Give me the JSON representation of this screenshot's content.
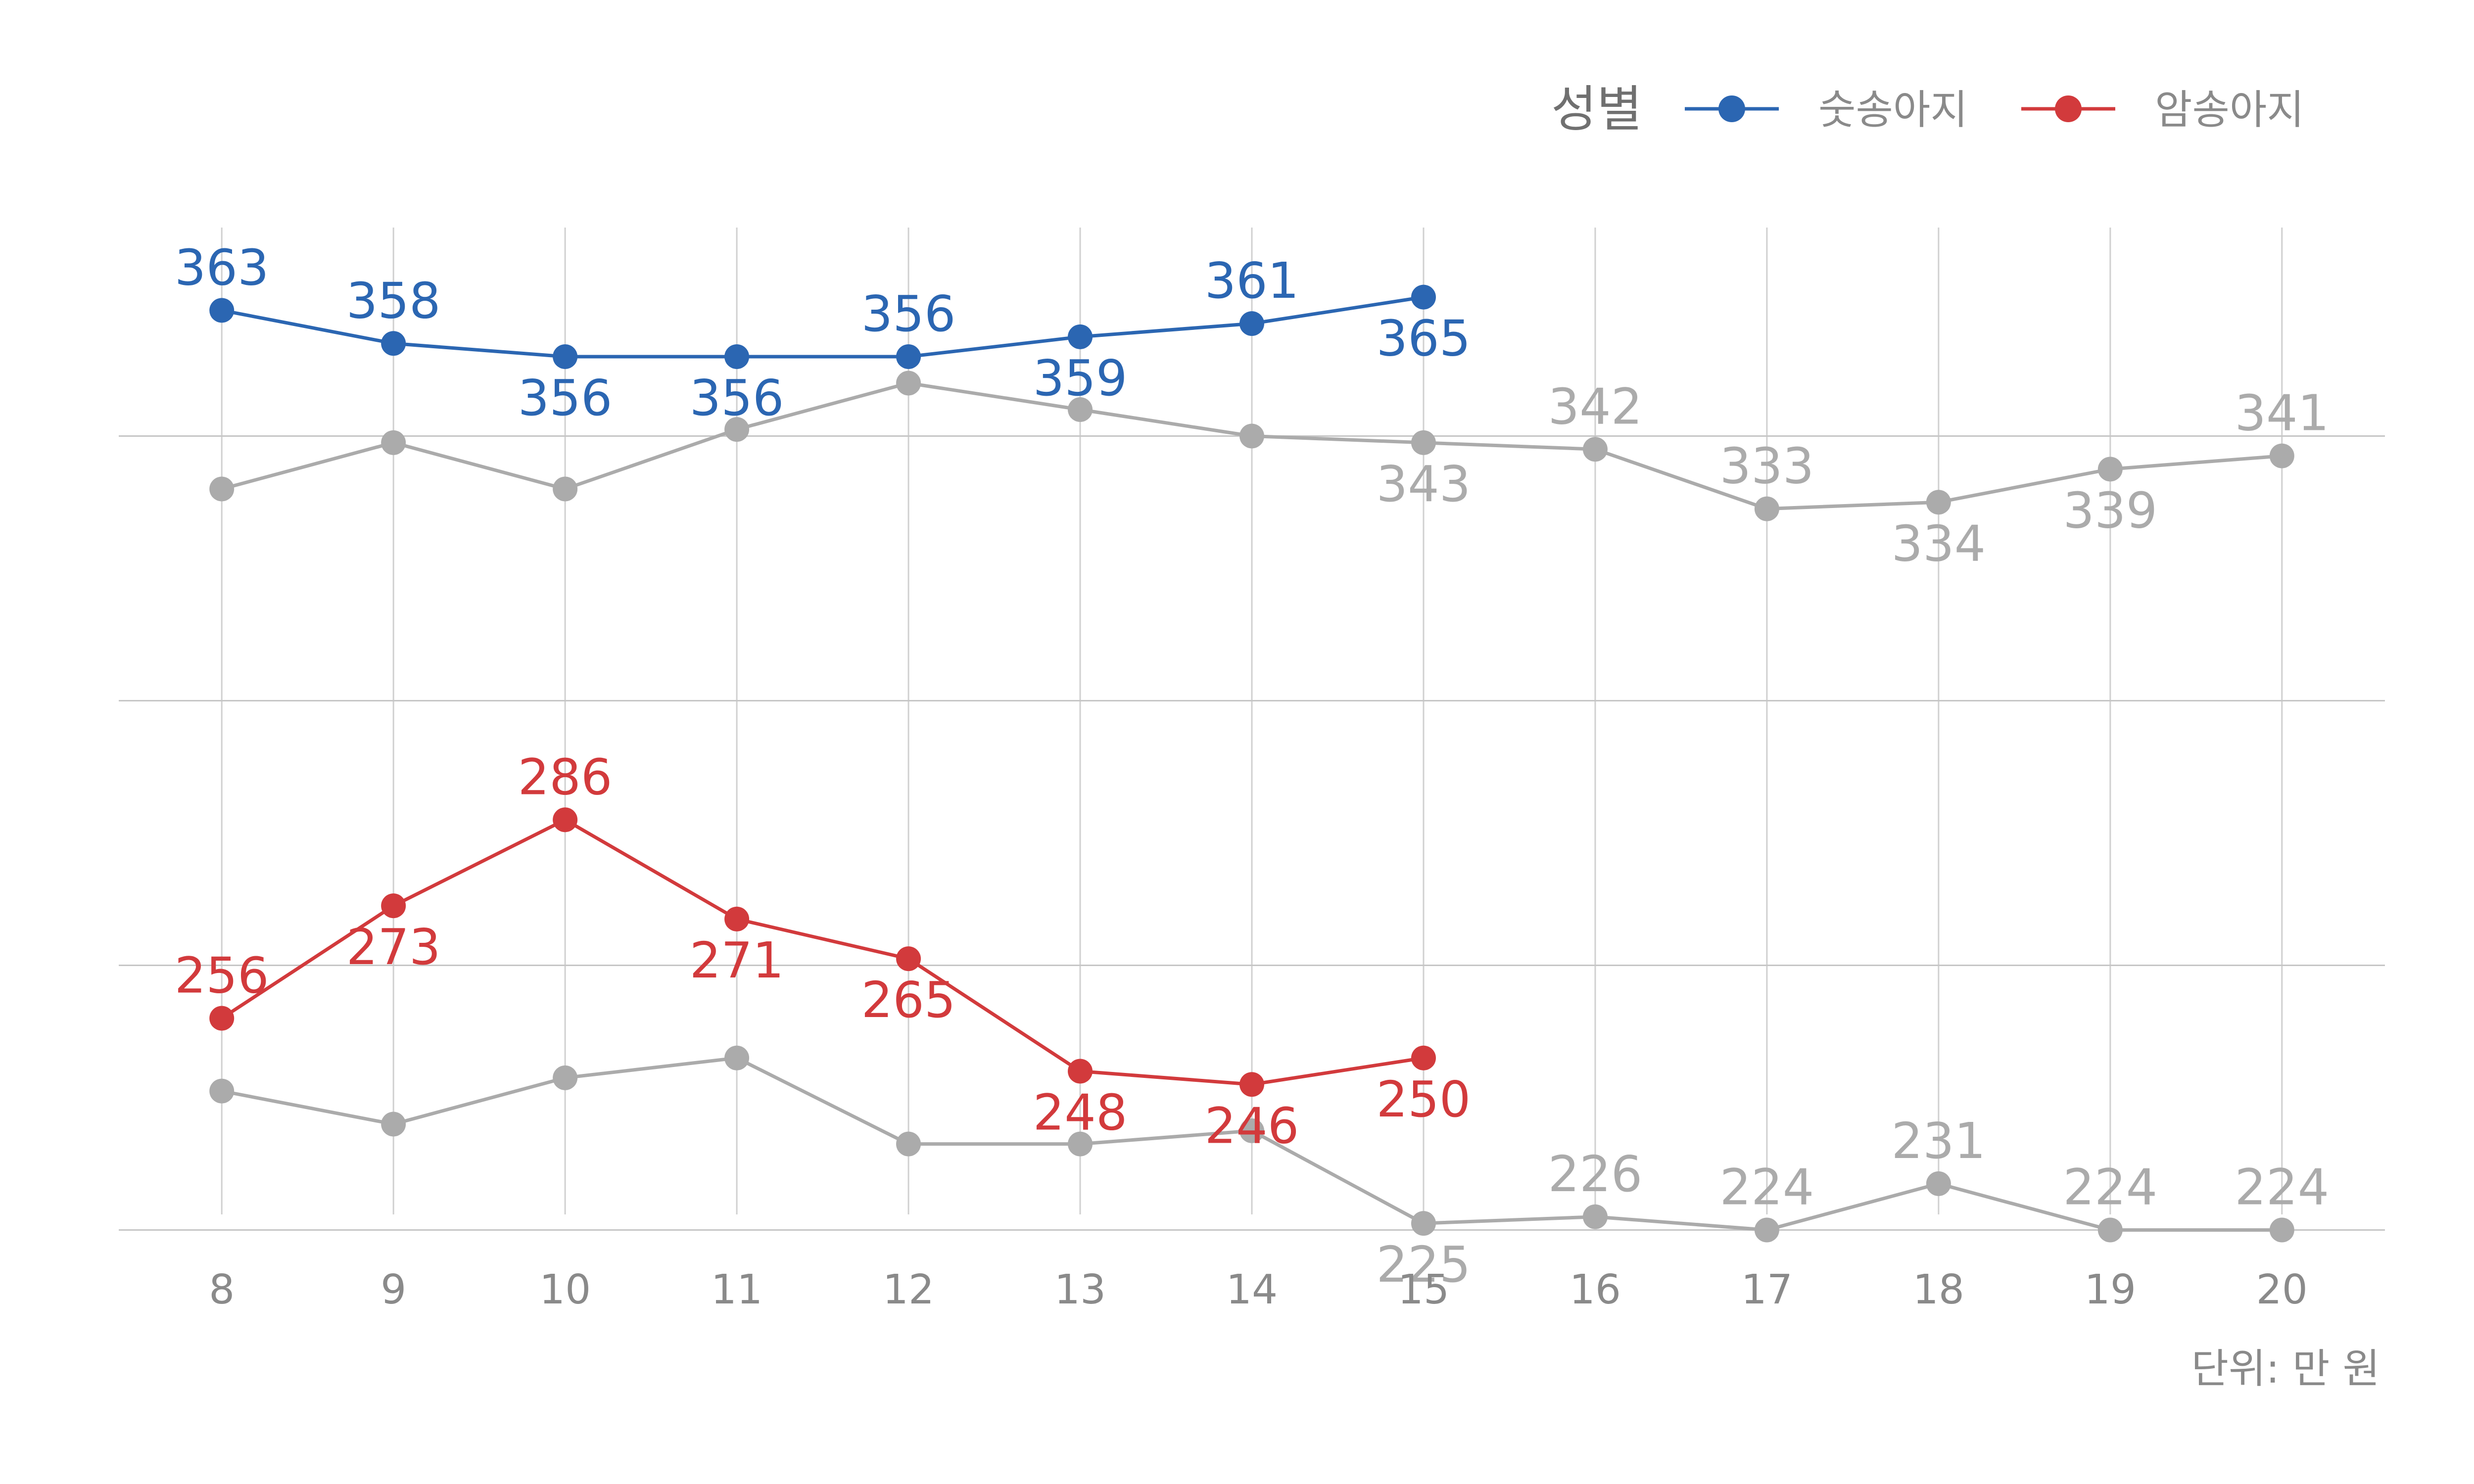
{
  "chart_data": {
    "type": "line",
    "caption": "단위: 만 원",
    "legend": {
      "title": "성별",
      "position": "top-right",
      "entries": [
        {
          "label": "숫송아지",
          "color": "#2b66b2"
        },
        {
          "label": "암송아지",
          "color": "#d23a3c"
        }
      ]
    },
    "x": [
      8,
      9,
      10,
      11,
      12,
      13,
      14,
      15,
      16,
      17,
      18,
      19,
      20
    ],
    "xlim": [
      7.4,
      20.6
    ],
    "ylim": [
      220,
      380
    ],
    "grid": true,
    "y_gridlines": [
      224,
      264,
      304,
      344
    ],
    "series": [
      {
        "group": "숫송아지",
        "highlighted": true,
        "color": "#2b66b2",
        "x": [
          8,
          9,
          10,
          11,
          12,
          13,
          14,
          15
        ],
        "values": [
          363,
          358,
          356,
          356,
          356,
          359,
          361,
          365
        ],
        "label_side": [
          "above",
          "above",
          "below",
          "below",
          "above",
          "below",
          "above",
          "below"
        ]
      },
      {
        "group": "암송아지",
        "highlighted": true,
        "color": "#d23a3c",
        "x": [
          8,
          9,
          10,
          11,
          12,
          13,
          14,
          15
        ],
        "values": [
          256,
          273,
          286,
          271,
          265,
          248,
          246,
          250
        ],
        "label_side": [
          "above",
          "below",
          "above",
          "below",
          "below",
          "below",
          "below",
          "below"
        ]
      },
      {
        "group": "숫송아지",
        "highlighted": false,
        "color": "#ababab",
        "x": [
          8,
          9,
          10,
          11,
          12,
          13,
          14,
          15,
          16,
          17,
          18,
          19,
          20
        ],
        "values": [
          336,
          343,
          336,
          345,
          352,
          348,
          344,
          343,
          342,
          333,
          334,
          339,
          341
        ],
        "labels": [
          "",
          "",
          "",
          "",
          "",
          "",
          "",
          "343",
          "342",
          "333",
          "334",
          "339",
          "341"
        ],
        "label_side": [
          "above",
          "above",
          "above",
          "above",
          "above",
          "above",
          "above",
          "below",
          "above",
          "above",
          "below",
          "below",
          "above"
        ]
      },
      {
        "group": "암송아지",
        "highlighted": false,
        "color": "#ababab",
        "x": [
          8,
          9,
          10,
          11,
          12,
          13,
          14,
          15,
          16,
          17,
          18,
          19,
          20
        ],
        "values": [
          245,
          240,
          247,
          250,
          237,
          237,
          239,
          225,
          226,
          224,
          231,
          224,
          224
        ],
        "labels": [
          "",
          "",
          "",
          "",
          "",
          "",
          "",
          "225",
          "226",
          "224",
          "231",
          "224",
          "224"
        ],
        "label_side": [
          "above",
          "above",
          "above",
          "above",
          "above",
          "above",
          "above",
          "below",
          "above",
          "above",
          "above",
          "above",
          "above"
        ]
      }
    ]
  }
}
